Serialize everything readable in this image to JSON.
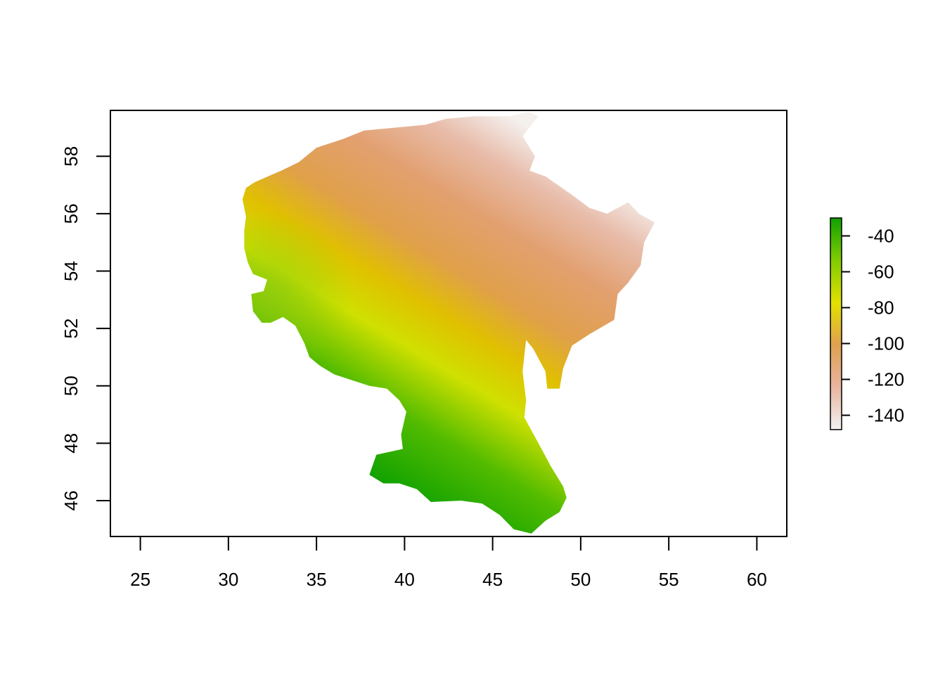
{
  "chart_data": {
    "type": "heatmap",
    "title": "",
    "xlabel": "",
    "ylabel": "",
    "xlim": [
      23.3,
      61.7
    ],
    "ylim": [
      44.75,
      59.6
    ],
    "x_ticks": [
      25,
      30,
      35,
      40,
      45,
      50,
      55,
      60
    ],
    "y_ticks": [
      46,
      48,
      50,
      52,
      54,
      56,
      58
    ],
    "x_tick_labels": [
      "25",
      "30",
      "35",
      "40",
      "45",
      "50",
      "55",
      "60"
    ],
    "y_tick_labels": [
      "46",
      "48",
      "50",
      "52",
      "54",
      "56",
      "58"
    ],
    "legend": {
      "type": "colorbar",
      "placement": "right",
      "range": [
        -148,
        -30
      ],
      "ticks": [
        -40,
        -60,
        -80,
        -100,
        -120,
        -140
      ],
      "tick_labels": [
        "-40",
        "-60",
        "-80",
        "-100",
        "-120",
        "-140"
      ],
      "colormap": [
        "#f2f2f2",
        "#e8b5a0",
        "#e0a050",
        "#e2e000",
        "#80cc00",
        "#10a000"
      ]
    },
    "grid": false,
    "region_outline_lonlat": [
      [
        31,
        56.9
      ],
      [
        31.5,
        57.1
      ],
      [
        33,
        57.5
      ],
      [
        34,
        57.8
      ],
      [
        35,
        58.3
      ],
      [
        36.5,
        58.6
      ],
      [
        37.7,
        58.9
      ],
      [
        39.5,
        59.0
      ],
      [
        41.2,
        59.1
      ],
      [
        42.3,
        59.3
      ],
      [
        44,
        59.4
      ],
      [
        46,
        59.4
      ],
      [
        47,
        59.55
      ],
      [
        47.6,
        59.4
      ],
      [
        46.7,
        58.7
      ],
      [
        47.4,
        58.0
      ],
      [
        47.1,
        57.5
      ],
      [
        48,
        57.3
      ],
      [
        49.4,
        56.7
      ],
      [
        50.5,
        56.2
      ],
      [
        51.5,
        56.0
      ],
      [
        52.7,
        56.4
      ],
      [
        53.3,
        56.0
      ],
      [
        54.2,
        55.7
      ],
      [
        53.6,
        55.0
      ],
      [
        53.4,
        54.2
      ],
      [
        52.7,
        53.6
      ],
      [
        52.1,
        53.2
      ],
      [
        51.9,
        52.3
      ],
      [
        50.5,
        51.8
      ],
      [
        49.5,
        51.4
      ],
      [
        49,
        50.6
      ],
      [
        48.8,
        49.9
      ],
      [
        48.1,
        49.9
      ],
      [
        48,
        50.5
      ],
      [
        47.3,
        51.3
      ],
      [
        46.9,
        51.6
      ],
      [
        46.7,
        50.5
      ],
      [
        46.9,
        49.5
      ],
      [
        46.8,
        48.9
      ],
      [
        47.6,
        48.0
      ],
      [
        48.3,
        47.2
      ],
      [
        49,
        46.5
      ],
      [
        49.2,
        46.1
      ],
      [
        48.8,
        45.6
      ],
      [
        48,
        45.3
      ],
      [
        47.2,
        44.85
      ],
      [
        46.2,
        45.0
      ],
      [
        45.4,
        45.5
      ],
      [
        44.4,
        45.9
      ],
      [
        43.2,
        46.0
      ],
      [
        41.5,
        45.95
      ],
      [
        40.7,
        46.4
      ],
      [
        39.7,
        46.6
      ],
      [
        38.8,
        46.6
      ],
      [
        38.0,
        46.9
      ],
      [
        38.4,
        47.6
      ],
      [
        39.9,
        47.8
      ],
      [
        39.8,
        48.3
      ],
      [
        40.1,
        49.1
      ],
      [
        39.7,
        49.5
      ],
      [
        39.0,
        49.9
      ],
      [
        38.0,
        50.0
      ],
      [
        37.0,
        50.2
      ],
      [
        36.0,
        50.4
      ],
      [
        35.2,
        50.7
      ],
      [
        34.6,
        51.0
      ],
      [
        34.3,
        51.5
      ],
      [
        33.8,
        52.1
      ],
      [
        33.1,
        52.4
      ],
      [
        32.4,
        52.2
      ],
      [
        31.9,
        52.2
      ],
      [
        31.4,
        52.6
      ],
      [
        31.3,
        53.2
      ],
      [
        32.0,
        53.3
      ],
      [
        32.2,
        53.7
      ],
      [
        31.4,
        53.9
      ],
      [
        31.1,
        54.3
      ],
      [
        30.9,
        54.8
      ],
      [
        30.9,
        55.4
      ],
      [
        31.0,
        55.9
      ],
      [
        30.8,
        56.5
      ],
      [
        31.0,
        56.9
      ]
    ]
  }
}
